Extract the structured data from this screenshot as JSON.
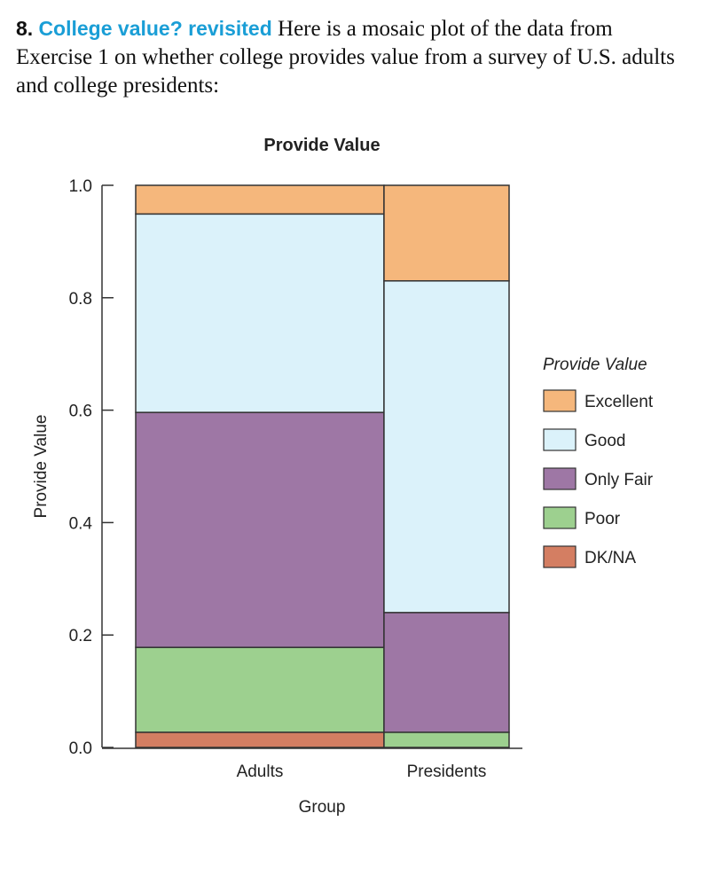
{
  "question": {
    "number": "8.",
    "title": "College value? revisited",
    "text": "Here is a mosaic plot of the data from Exercise 1 on whether college provides value from a survey of U.S. adults and college presidents:"
  },
  "chart_data": {
    "type": "mosaic",
    "title": "Provide Value",
    "xlabel": "Group",
    "ylabel": "Provide Value",
    "ylim": [
      0,
      1
    ],
    "yticks": [
      "0.0",
      "0.2",
      "0.4",
      "0.6",
      "0.8",
      "1.0"
    ],
    "categories": [
      "Adults",
      "Presidents"
    ],
    "group_widths": [
      0.665,
      0.335
    ],
    "legend_title": "Provide Value",
    "legend_position": "right",
    "series": [
      {
        "name": "DK/NA",
        "color": "#d47e62",
        "values": [
          0.027,
          0.0
        ]
      },
      {
        "name": "Poor",
        "color": "#9dd08f",
        "values": [
          0.151,
          0.027
        ]
      },
      {
        "name": "Only Fair",
        "color": "#9e77a5",
        "values": [
          0.418,
          0.213
        ]
      },
      {
        "name": "Good",
        "color": "#dbf2fa",
        "values": [
          0.353,
          0.59
        ]
      },
      {
        "name": "Excellent",
        "color": "#f5b77c",
        "values": [
          0.051,
          0.17
        ]
      }
    ]
  }
}
